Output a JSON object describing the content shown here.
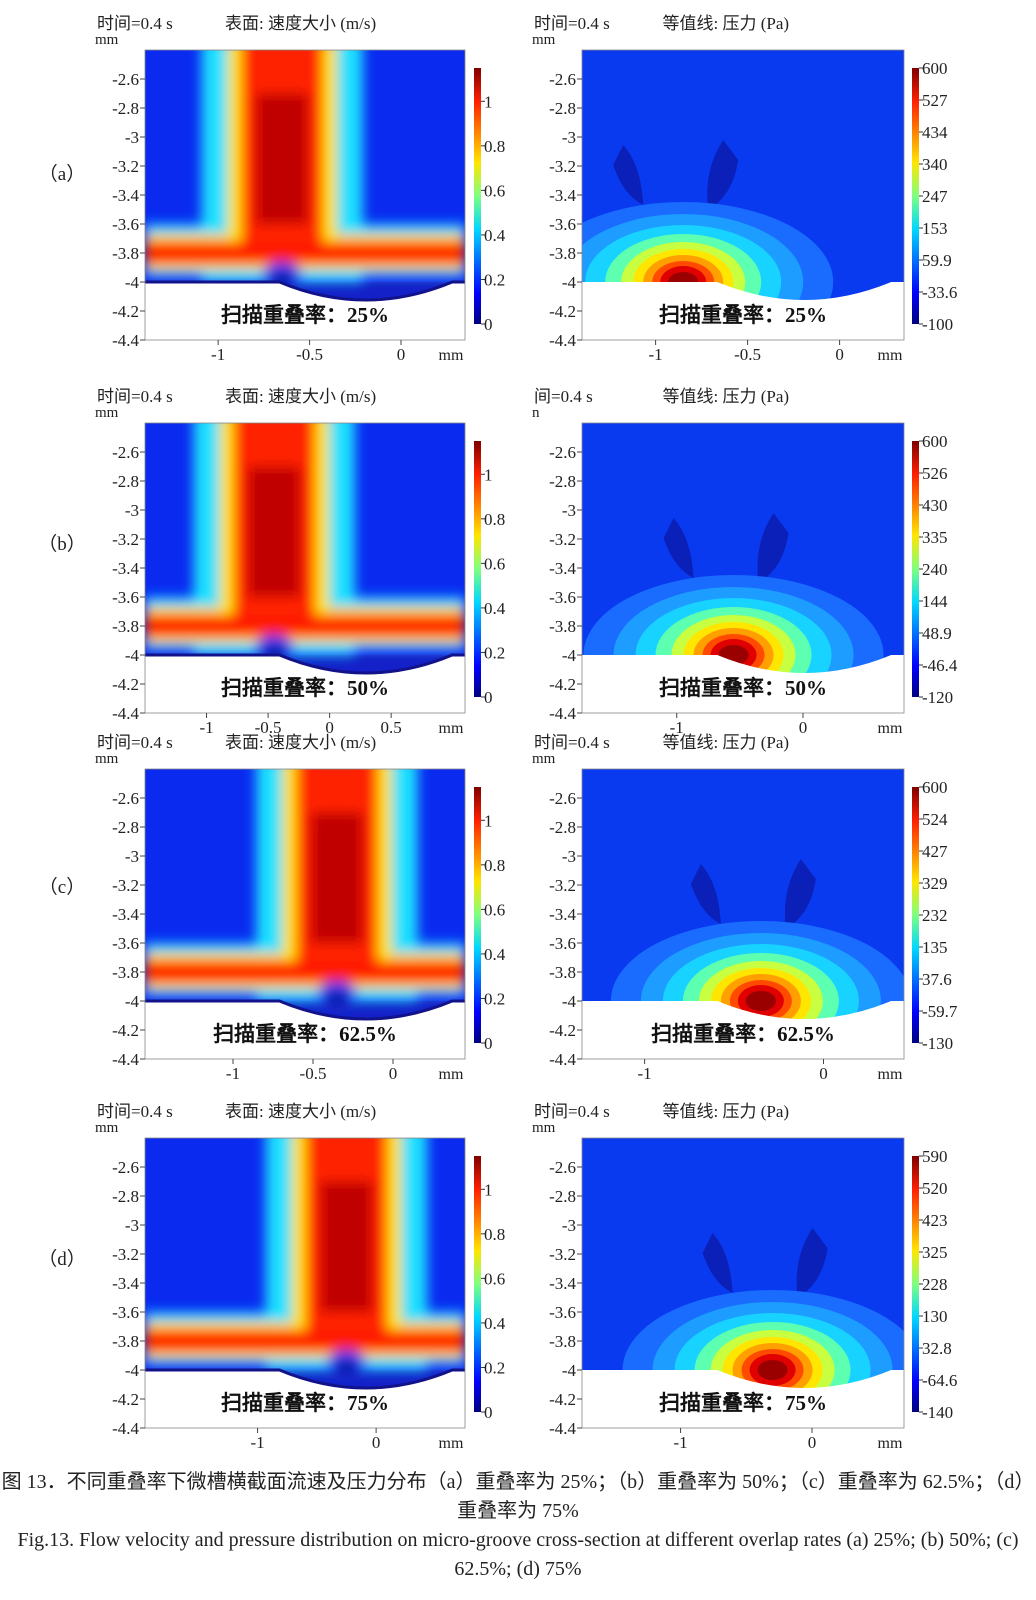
{
  "rows": [
    {
      "label": "（a）",
      "velocity": {
        "time": "时间=0.4 s",
        "title": "表面: 速度大小 (m/s)",
        "unit": "mm",
        "y_ticks": [
          "-2.6",
          "-2.8",
          "-3",
          "-3.2",
          "-3.4",
          "-3.6",
          "-3.8",
          "-4",
          "-4.2",
          "-4.4"
        ],
        "x_ticks": [
          {
            "label": "-1",
            "v": -1
          },
          {
            "label": "-0.5",
            "v": -0.5
          },
          {
            "label": "0",
            "v": 0
          }
        ],
        "xlim": [
          -1.4,
          0.35
        ],
        "ylim": [
          -4.4,
          -2.4
        ],
        "colorbar_ticks": [
          "1",
          "0.8",
          "0.6",
          "0.4",
          "0.2",
          "0"
        ],
        "overlay": "扫描重叠率：25%",
        "stem_x": -0.65
      },
      "pressure": {
        "time": "时间=0.4 s",
        "title": "等值线: 压力 (Pa)",
        "unit": "mm",
        "y_ticks": [
          "-2.6",
          "-2.8",
          "-3",
          "-3.2",
          "-3.4",
          "-3.6",
          "-3.8",
          "-4",
          "-4.2",
          "-4.4"
        ],
        "x_ticks": [
          {
            "label": "-1",
            "v": -1
          },
          {
            "label": "-0.5",
            "v": -0.5
          },
          {
            "label": "0",
            "v": 0
          }
        ],
        "xlim": [
          -1.4,
          0.35
        ],
        "ylim": [
          -4.4,
          -2.4
        ],
        "colorbar_ticks": [
          "600",
          "527",
          "434",
          "340",
          "247",
          "153",
          "59.9",
          "-33.6",
          "-100"
        ],
        "overlay": "扫描重叠率：25%",
        "peak_x": -0.85
      }
    },
    {
      "label": "（b）",
      "velocity": {
        "time": "时间=0.4 s",
        "title": "表面: 速度大小 (m/s)",
        "unit": "mm",
        "y_ticks": [
          "-2.6",
          "-2.8",
          "-3",
          "-3.2",
          "-3.4",
          "-3.6",
          "-3.8",
          "-4",
          "-4.2",
          "-4.4"
        ],
        "x_ticks": [
          {
            "label": "-1",
            "v": -1
          },
          {
            "label": "-0.5",
            "v": -0.5
          },
          {
            "label": "0",
            "v": 0
          },
          {
            "label": "0.5",
            "v": 0.5
          }
        ],
        "xlim": [
          -1.5,
          1.1
        ],
        "ylim": [
          -4.4,
          -2.4
        ],
        "colorbar_ticks": [
          "1",
          "0.8",
          "0.6",
          "0.4",
          "0.2",
          "0"
        ],
        "overlay": "扫描重叠率：50%",
        "stem_x": -0.45
      },
      "pressure": {
        "time": "间=0.4 s",
        "title": "等值线: 压力 (Pa)",
        "unit": "n",
        "y_ticks": [
          "-2.6",
          "-2.8",
          "-3",
          "-3.2",
          "-3.4",
          "-3.6",
          "-3.8",
          "-4",
          "-4.2",
          "-4.4"
        ],
        "x_ticks": [
          {
            "label": "-1",
            "v": -1
          },
          {
            "label": "0",
            "v": 0
          }
        ],
        "xlim": [
          -1.75,
          0.8
        ],
        "ylim": [
          -4.4,
          -2.4
        ],
        "colorbar_ticks": [
          "600",
          "526",
          "430",
          "335",
          "240",
          "144",
          "48.9",
          "-46.4",
          "-120"
        ],
        "overlay": "扫描重叠率：50%",
        "peak_x": -0.55
      }
    },
    {
      "label": "（c）",
      "velocity": {
        "time": "时间=0.4 s",
        "title": "表面: 速度大小 (m/s)",
        "unit": "mm",
        "y_ticks": [
          "-2.6",
          "-2.8",
          "-3",
          "-3.2",
          "-3.4",
          "-3.6",
          "-3.8",
          "-4",
          "-4.2",
          "-4.4"
        ],
        "x_ticks": [
          {
            "label": "-1",
            "v": -1
          },
          {
            "label": "-0.5",
            "v": -0.5
          },
          {
            "label": "0",
            "v": 0
          }
        ],
        "xlim": [
          -1.55,
          0.45
        ],
        "ylim": [
          -4.4,
          -2.4
        ],
        "colorbar_ticks": [
          "1",
          "0.8",
          "0.6",
          "0.4",
          "0.2",
          "0"
        ],
        "overlay": "扫描重叠率：62.5%",
        "stem_x": -0.35
      },
      "pressure": {
        "time": "时间=0.4 s",
        "title": "等值线: 压力 (Pa)",
        "unit": "mm",
        "y_ticks": [
          "-2.6",
          "-2.8",
          "-3",
          "-3.2",
          "-3.4",
          "-3.6",
          "-3.8",
          "-4",
          "-4.2",
          "-4.4"
        ],
        "x_ticks": [
          {
            "label": "-1",
            "v": -1
          },
          {
            "label": "0",
            "v": 0
          }
        ],
        "xlim": [
          -1.35,
          0.45
        ],
        "ylim": [
          -4.4,
          -2.4
        ],
        "colorbar_ticks": [
          "600",
          "524",
          "427",
          "329",
          "232",
          "135",
          "37.6",
          "-59.7",
          "-130"
        ],
        "overlay": "扫描重叠率：62.5%",
        "peak_x": -0.35
      }
    },
    {
      "label": "（d）",
      "velocity": {
        "time": "时间=0.4 s",
        "title": "表面: 速度大小 (m/s)",
        "unit": "mm",
        "y_ticks": [
          "-2.6",
          "-2.8",
          "-3",
          "-3.2",
          "-3.4",
          "-3.6",
          "-3.8",
          "-4",
          "-4.2",
          "-4.4"
        ],
        "x_ticks": [
          {
            "label": "-1",
            "v": -1
          },
          {
            "label": "0",
            "v": 0
          }
        ],
        "xlim": [
          -1.95,
          0.75
        ],
        "ylim": [
          -4.4,
          -2.4
        ],
        "colorbar_ticks": [
          "1",
          "0.8",
          "0.6",
          "0.4",
          "0.2",
          "0"
        ],
        "overlay": "扫描重叠率：75%",
        "stem_x": -0.25
      },
      "pressure": {
        "time": "时间=0.4 s",
        "title": "等值线: 压力 (Pa)",
        "unit": "mm",
        "y_ticks": [
          "-2.6",
          "-2.8",
          "-3",
          "-3.2",
          "-3.4",
          "-3.6",
          "-3.8",
          "-4",
          "-4.2",
          "-4.4"
        ],
        "x_ticks": [
          {
            "label": "-1",
            "v": -1
          },
          {
            "label": "0",
            "v": 0
          }
        ],
        "xlim": [
          -1.75,
          0.7
        ],
        "ylim": [
          -4.4,
          -2.4
        ],
        "colorbar_ticks": [
          "590",
          "520",
          "423",
          "325",
          "228",
          "130",
          "32.8",
          "-64.6",
          "-140"
        ],
        "overlay": "扫描重叠率：75%",
        "peak_x": -0.3
      }
    }
  ],
  "caption": {
    "cn": "图 13．不同重叠率下微槽横截面流速及压力分布（a）重叠率为 25%；（b）重叠率为 50%；（c）重叠率为 62.5%；（d）重叠率为 75%",
    "en": "Fig.13. Flow velocity and pressure distribution on micro-groove cross-section at different overlap rates (a) 25%; (b) 50%; (c) 62.5%; (d) 75%"
  }
}
